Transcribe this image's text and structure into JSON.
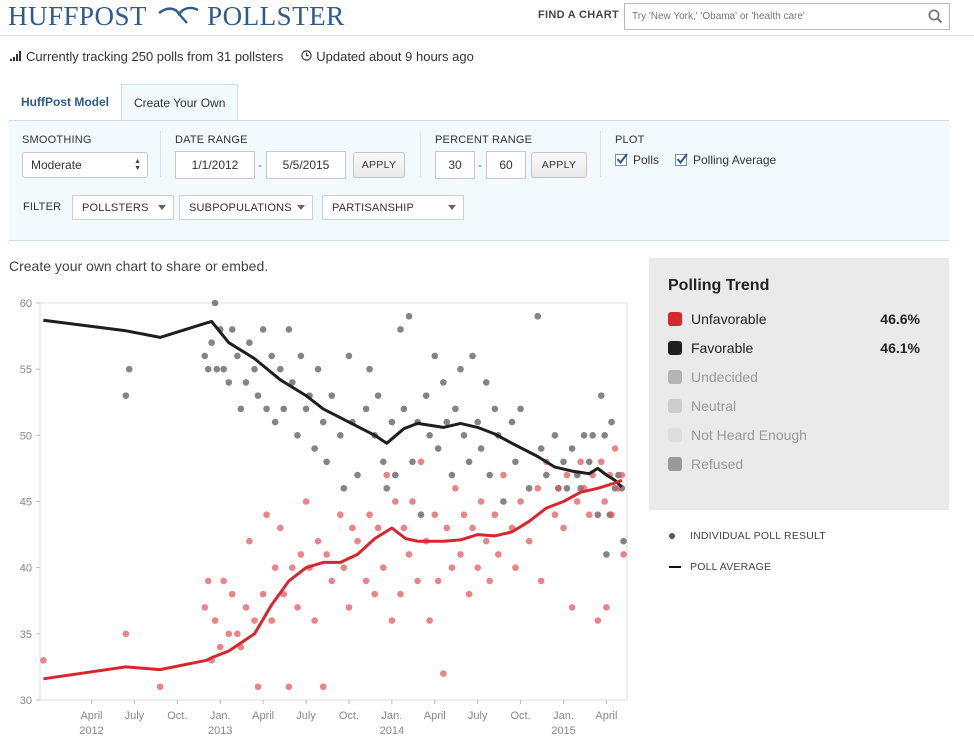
{
  "header": {
    "logo_left": "HUFFPOST",
    "logo_right": "POLLSTER",
    "find_label": "FIND A CHART",
    "search_placeholder": "Try 'New York,' 'Obama' or 'health care'"
  },
  "status": {
    "tracking": "Currently tracking 250 polls from 31 pollsters",
    "updated": "Updated about 9 hours ago"
  },
  "tabs": [
    {
      "label": "HuffPost Model",
      "active": false
    },
    {
      "label": "Create Your Own",
      "active": true
    }
  ],
  "controls": {
    "smoothing_label": "SMOOTHING",
    "smoothing_value": "Moderate",
    "date_range_label": "DATE RANGE",
    "date_from": "1/1/2012",
    "date_to": "5/5/2015",
    "apply_label": "APPLY",
    "percent_range_label": "PERCENT RANGE",
    "percent_from": "30",
    "percent_to": "60",
    "plot_label": "PLOT",
    "polls_label": "Polls",
    "polling_average_label": "Polling Average",
    "filter_label": "FILTER",
    "filters": [
      "POLLSTERS",
      "SUBPOPULATIONS",
      "PARTISANSHIP"
    ],
    "dash": "-"
  },
  "subtitle": "Create your own chart to share or embed.",
  "trend": {
    "title": "Polling Trend",
    "rows": [
      {
        "label": "Unfavorable",
        "value": "46.6%",
        "color": "#d9262e",
        "label_color": "#222"
      },
      {
        "label": "Favorable",
        "value": "46.1%",
        "color": "#1e1e1e",
        "label_color": "#222"
      },
      {
        "label": "Undecided",
        "value": "",
        "color": "#b5b5b5",
        "label_color": "#999"
      },
      {
        "label": "Neutral",
        "value": "",
        "color": "#cdcdcd",
        "label_color": "#999"
      },
      {
        "label": "Not Heard Enough",
        "value": "",
        "color": "#dedede",
        "label_color": "#999"
      },
      {
        "label": "Refused",
        "value": "",
        "color": "#9a9a9a",
        "label_color": "#999"
      }
    ]
  },
  "legend": {
    "individual": "INDIVIDUAL POLL RESULT",
    "average": "POLL AVERAGE"
  },
  "chart_data": {
    "type": "scatter",
    "title": "Polling Trend",
    "ylim": [
      30,
      60
    ],
    "xlim": [
      2011.95,
      2015.37
    ],
    "y_ticks": [
      30,
      35,
      40,
      45,
      50,
      55,
      60
    ],
    "x_ticks": [
      {
        "t": 2012.25,
        "label": "April",
        "year": "2012"
      },
      {
        "t": 2012.5,
        "label": "July",
        "year": ""
      },
      {
        "t": 2012.75,
        "label": "Oct.",
        "year": ""
      },
      {
        "t": 2013.0,
        "label": "Jan.",
        "year": "2013"
      },
      {
        "t": 2013.25,
        "label": "April",
        "year": ""
      },
      {
        "t": 2013.5,
        "label": "July",
        "year": ""
      },
      {
        "t": 2013.75,
        "label": "Oct.",
        "year": ""
      },
      {
        "t": 2014.0,
        "label": "Jan.",
        "year": "2014"
      },
      {
        "t": 2014.25,
        "label": "April",
        "year": ""
      },
      {
        "t": 2014.5,
        "label": "July",
        "year": ""
      },
      {
        "t": 2014.75,
        "label": "Oct.",
        "year": ""
      },
      {
        "t": 2015.0,
        "label": "Jan.",
        "year": "2015"
      },
      {
        "t": 2015.25,
        "label": "April",
        "year": ""
      }
    ],
    "series": [
      {
        "name": "Favorable",
        "color": "#1e1e1e",
        "dot_color": "#555555",
        "line": [
          [
            2011.97,
            58.7
          ],
          [
            2012.45,
            57.9
          ],
          [
            2012.65,
            57.4
          ],
          [
            2012.92,
            58.5
          ],
          [
            2012.95,
            58.6
          ],
          [
            2013.05,
            57.0
          ],
          [
            2013.2,
            55.8
          ],
          [
            2013.35,
            54.2
          ],
          [
            2013.5,
            53.0
          ],
          [
            2013.6,
            52.0
          ],
          [
            2013.75,
            51.0
          ],
          [
            2013.9,
            50.0
          ],
          [
            2013.97,
            49.4
          ],
          [
            2014.07,
            50.5
          ],
          [
            2014.15,
            50.9
          ],
          [
            2014.3,
            50.6
          ],
          [
            2014.4,
            50.9
          ],
          [
            2014.5,
            50.6
          ],
          [
            2014.6,
            50.1
          ],
          [
            2014.7,
            49.4
          ],
          [
            2014.85,
            48.4
          ],
          [
            2014.95,
            47.6
          ],
          [
            2015.05,
            47.3
          ],
          [
            2015.1,
            47.2
          ],
          [
            2015.15,
            47.1
          ],
          [
            2015.2,
            47.5
          ],
          [
            2015.25,
            47.0
          ],
          [
            2015.3,
            46.6
          ],
          [
            2015.34,
            46.1
          ]
        ],
        "polls": [
          [
            2012.45,
            53
          ],
          [
            2012.47,
            55
          ],
          [
            2012.91,
            56
          ],
          [
            2012.93,
            55
          ],
          [
            2012.95,
            57
          ],
          [
            2012.97,
            60
          ],
          [
            2012.98,
            55
          ],
          [
            2013.0,
            58
          ],
          [
            2013.02,
            55
          ],
          [
            2013.05,
            54
          ],
          [
            2013.07,
            58
          ],
          [
            2013.1,
            56
          ],
          [
            2013.12,
            52
          ],
          [
            2013.15,
            54
          ],
          [
            2013.17,
            57
          ],
          [
            2013.2,
            55
          ],
          [
            2013.22,
            53
          ],
          [
            2013.25,
            58
          ],
          [
            2013.27,
            52
          ],
          [
            2013.3,
            56
          ],
          [
            2013.32,
            51
          ],
          [
            2013.35,
            55
          ],
          [
            2013.37,
            52
          ],
          [
            2013.4,
            58
          ],
          [
            2013.42,
            54
          ],
          [
            2013.45,
            50
          ],
          [
            2013.47,
            56
          ],
          [
            2013.5,
            52
          ],
          [
            2013.52,
            53
          ],
          [
            2013.55,
            49
          ],
          [
            2013.57,
            55
          ],
          [
            2013.6,
            51
          ],
          [
            2013.62,
            48
          ],
          [
            2013.65,
            53
          ],
          [
            2013.7,
            50
          ],
          [
            2013.72,
            46
          ],
          [
            2013.75,
            56
          ],
          [
            2013.77,
            51
          ],
          [
            2013.8,
            47
          ],
          [
            2013.85,
            52
          ],
          [
            2013.87,
            55
          ],
          [
            2013.9,
            50
          ],
          [
            2013.92,
            53
          ],
          [
            2013.95,
            48
          ],
          [
            2013.97,
            46
          ],
          [
            2014.0,
            51
          ],
          [
            2014.02,
            47
          ],
          [
            2014.05,
            58
          ],
          [
            2014.07,
            52
          ],
          [
            2014.1,
            59
          ],
          [
            2014.12,
            48
          ],
          [
            2014.15,
            51
          ],
          [
            2014.17,
            44
          ],
          [
            2014.2,
            53
          ],
          [
            2014.22,
            50
          ],
          [
            2014.25,
            56
          ],
          [
            2014.27,
            49
          ],
          [
            2014.3,
            54
          ],
          [
            2014.32,
            51
          ],
          [
            2014.35,
            47
          ],
          [
            2014.37,
            52
          ],
          [
            2014.4,
            55
          ],
          [
            2014.42,
            50
          ],
          [
            2014.45,
            48
          ],
          [
            2014.47,
            56
          ],
          [
            2014.5,
            51
          ],
          [
            2014.52,
            49
          ],
          [
            2014.55,
            54
          ],
          [
            2014.57,
            47
          ],
          [
            2014.6,
            52
          ],
          [
            2014.62,
            50
          ],
          [
            2014.65,
            45
          ],
          [
            2014.7,
            51
          ],
          [
            2014.72,
            48
          ],
          [
            2014.75,
            52
          ],
          [
            2014.8,
            46
          ],
          [
            2014.85,
            59
          ],
          [
            2014.87,
            49
          ],
          [
            2014.9,
            47
          ],
          [
            2014.95,
            50
          ],
          [
            2014.97,
            46
          ],
          [
            2015.0,
            48
          ],
          [
            2015.02,
            46
          ],
          [
            2015.05,
            49
          ],
          [
            2015.08,
            47
          ],
          [
            2015.1,
            46
          ],
          [
            2015.12,
            50
          ],
          [
            2015.15,
            48
          ],
          [
            2015.17,
            50
          ],
          [
            2015.2,
            44
          ],
          [
            2015.22,
            53
          ],
          [
            2015.24,
            50
          ],
          [
            2015.25,
            41
          ],
          [
            2015.27,
            44
          ],
          [
            2015.28,
            51
          ],
          [
            2015.3,
            46
          ],
          [
            2015.32,
            47
          ],
          [
            2015.35,
            42
          ],
          [
            2015.34,
            46
          ]
        ]
      },
      {
        "name": "Unfavorable",
        "color": "#d9262e",
        "dot_color": "#e0555c",
        "line": [
          [
            2011.97,
            31.6
          ],
          [
            2012.45,
            32.5
          ],
          [
            2012.65,
            32.3
          ],
          [
            2012.92,
            33.0
          ],
          [
            2012.95,
            33.2
          ],
          [
            2013.05,
            33.7
          ],
          [
            2013.2,
            35.0
          ],
          [
            2013.3,
            37.2
          ],
          [
            2013.4,
            39.0
          ],
          [
            2013.5,
            40.0
          ],
          [
            2013.6,
            40.4
          ],
          [
            2013.7,
            40.4
          ],
          [
            2013.8,
            41.0
          ],
          [
            2013.9,
            42.2
          ],
          [
            2014.0,
            43.0
          ],
          [
            2014.08,
            42.2
          ],
          [
            2014.15,
            42.0
          ],
          [
            2014.3,
            42.0
          ],
          [
            2014.4,
            42.1
          ],
          [
            2014.5,
            42.5
          ],
          [
            2014.6,
            42.4
          ],
          [
            2014.7,
            42.7
          ],
          [
            2014.8,
            43.5
          ],
          [
            2014.9,
            44.5
          ],
          [
            2015.0,
            45.0
          ],
          [
            2015.1,
            45.7
          ],
          [
            2015.2,
            46.0
          ],
          [
            2015.3,
            46.4
          ],
          [
            2015.34,
            46.6
          ]
        ],
        "polls": [
          [
            2011.97,
            33
          ],
          [
            2012.45,
            35
          ],
          [
            2012.65,
            31
          ],
          [
            2012.91,
            37
          ],
          [
            2012.93,
            39
          ],
          [
            2012.95,
            33
          ],
          [
            2012.97,
            36
          ],
          [
            2013.0,
            34
          ],
          [
            2013.02,
            39
          ],
          [
            2013.05,
            35
          ],
          [
            2013.07,
            38
          ],
          [
            2013.1,
            35
          ],
          [
            2013.12,
            34
          ],
          [
            2013.15,
            37
          ],
          [
            2013.17,
            42
          ],
          [
            2013.2,
            36
          ],
          [
            2013.22,
            31
          ],
          [
            2013.25,
            38
          ],
          [
            2013.27,
            44
          ],
          [
            2013.3,
            36
          ],
          [
            2013.32,
            40
          ],
          [
            2013.35,
            43
          ],
          [
            2013.37,
            38
          ],
          [
            2013.4,
            31
          ],
          [
            2013.42,
            40
          ],
          [
            2013.45,
            37
          ],
          [
            2013.47,
            41
          ],
          [
            2013.5,
            45
          ],
          [
            2013.52,
            40
          ],
          [
            2013.55,
            36
          ],
          [
            2013.57,
            42
          ],
          [
            2013.6,
            31
          ],
          [
            2013.62,
            41
          ],
          [
            2013.65,
            39
          ],
          [
            2013.7,
            44
          ],
          [
            2013.72,
            40
          ],
          [
            2013.75,
            37
          ],
          [
            2013.77,
            43
          ],
          [
            2013.8,
            42
          ],
          [
            2013.85,
            39
          ],
          [
            2013.87,
            44
          ],
          [
            2013.9,
            38
          ],
          [
            2013.92,
            43
          ],
          [
            2013.95,
            40
          ],
          [
            2013.97,
            47
          ],
          [
            2014.0,
            36
          ],
          [
            2014.02,
            45
          ],
          [
            2014.05,
            38
          ],
          [
            2014.07,
            43
          ],
          [
            2014.1,
            41
          ],
          [
            2014.12,
            45
          ],
          [
            2014.15,
            39
          ],
          [
            2014.17,
            48
          ],
          [
            2014.2,
            42
          ],
          [
            2014.22,
            36
          ],
          [
            2014.25,
            44
          ],
          [
            2014.27,
            39
          ],
          [
            2014.3,
            32
          ],
          [
            2014.32,
            43
          ],
          [
            2014.35,
            40
          ],
          [
            2014.37,
            46
          ],
          [
            2014.4,
            41
          ],
          [
            2014.42,
            44
          ],
          [
            2014.45,
            38
          ],
          [
            2014.47,
            43
          ],
          [
            2014.5,
            40
          ],
          [
            2014.52,
            45
          ],
          [
            2014.55,
            42
          ],
          [
            2014.57,
            39
          ],
          [
            2014.6,
            44
          ],
          [
            2014.62,
            41
          ],
          [
            2014.65,
            47
          ],
          [
            2014.7,
            43
          ],
          [
            2014.72,
            40
          ],
          [
            2014.75,
            45
          ],
          [
            2014.8,
            42
          ],
          [
            2014.85,
            46
          ],
          [
            2014.87,
            39
          ],
          [
            2014.9,
            48
          ],
          [
            2014.95,
            44
          ],
          [
            2014.97,
            46
          ],
          [
            2015.0,
            43
          ],
          [
            2015.02,
            47
          ],
          [
            2015.05,
            37
          ],
          [
            2015.08,
            45
          ],
          [
            2015.1,
            48
          ],
          [
            2015.12,
            46
          ],
          [
            2015.15,
            44
          ],
          [
            2015.17,
            47
          ],
          [
            2015.2,
            36
          ],
          [
            2015.22,
            48
          ],
          [
            2015.24,
            45
          ],
          [
            2015.25,
            37
          ],
          [
            2015.27,
            47
          ],
          [
            2015.28,
            44
          ],
          [
            2015.3,
            49
          ],
          [
            2015.32,
            46
          ],
          [
            2015.35,
            41
          ],
          [
            2015.34,
            47
          ]
        ]
      }
    ]
  }
}
